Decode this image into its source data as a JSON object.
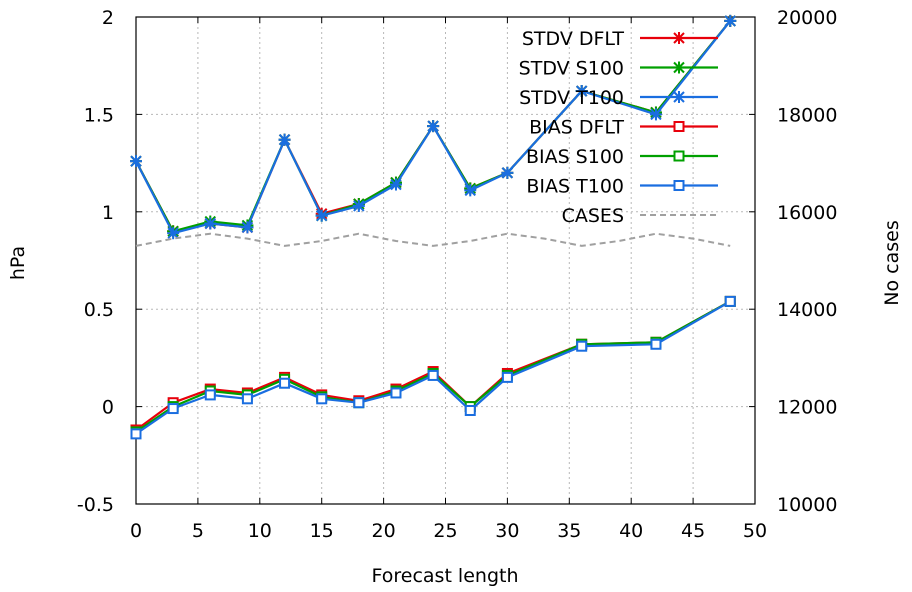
{
  "chart_data": {
    "type": "line",
    "title": "",
    "xlabel": "Forecast length",
    "ylabel": "hPa",
    "y2label": "No cases",
    "xlim": [
      0,
      50
    ],
    "ylim": [
      -0.5,
      2
    ],
    "y2lim": [
      10000,
      20000
    ],
    "xticks": [
      "0",
      "5",
      "10",
      "15",
      "20",
      "25",
      "30",
      "35",
      "40",
      "45",
      "50"
    ],
    "yticks": [
      "-0.5",
      "0",
      "0.5",
      "1",
      "1.5",
      "2"
    ],
    "y2ticks": [
      "10000",
      "12000",
      "14000",
      "16000",
      "18000",
      "20000"
    ],
    "grid": true,
    "legend_position": "top-right",
    "series": [
      {
        "name": "STDV DFLT",
        "color": "#e8000b",
        "marker": "star",
        "dash": "solid",
        "axis": "left",
        "x": [
          0,
          3,
          6,
          9,
          12,
          15,
          18,
          21,
          24,
          27,
          30,
          36,
          42,
          48
        ],
        "y": [
          1.26,
          0.9,
          0.94,
          0.92,
          1.37,
          0.99,
          1.04,
          1.15,
          1.44,
          1.12,
          1.2,
          1.62,
          1.51,
          1.98
        ]
      },
      {
        "name": "STDV S100",
        "color": "#00a000",
        "marker": "star",
        "dash": "solid",
        "axis": "left",
        "x": [
          0,
          3,
          6,
          9,
          12,
          15,
          18,
          21,
          24,
          27,
          30,
          36,
          42,
          48
        ],
        "y": [
          1.26,
          0.9,
          0.95,
          0.93,
          1.37,
          0.98,
          1.04,
          1.15,
          1.44,
          1.12,
          1.2,
          1.62,
          1.51,
          1.98
        ]
      },
      {
        "name": "STDV T100",
        "color": "#1a6ee0",
        "marker": "star",
        "dash": "solid",
        "axis": "left",
        "x": [
          0,
          3,
          6,
          9,
          12,
          15,
          18,
          21,
          24,
          27,
          30,
          36,
          42,
          48
        ],
        "y": [
          1.26,
          0.89,
          0.94,
          0.92,
          1.37,
          0.98,
          1.03,
          1.14,
          1.44,
          1.11,
          1.2,
          1.62,
          1.5,
          1.98
        ]
      },
      {
        "name": "BIAS DFLT",
        "color": "#e8000b",
        "marker": "square",
        "dash": "solid",
        "axis": "left",
        "x": [
          0,
          3,
          6,
          9,
          12,
          15,
          18,
          21,
          24,
          27,
          30,
          36,
          42,
          48
        ],
        "y": [
          -0.12,
          0.02,
          0.09,
          0.07,
          0.15,
          0.06,
          0.03,
          0.09,
          0.18,
          0.0,
          0.17,
          0.32,
          0.33,
          0.54
        ]
      },
      {
        "name": "BIAS S100",
        "color": "#00a000",
        "marker": "square",
        "dash": "solid",
        "axis": "left",
        "x": [
          0,
          3,
          6,
          9,
          12,
          15,
          18,
          21,
          24,
          27,
          30,
          36,
          42,
          48
        ],
        "y": [
          -0.13,
          0.0,
          0.08,
          0.06,
          0.14,
          0.05,
          0.02,
          0.08,
          0.17,
          0.0,
          0.16,
          0.32,
          0.33,
          0.54
        ]
      },
      {
        "name": "BIAS T100",
        "color": "#1a6ee0",
        "marker": "square",
        "dash": "solid",
        "axis": "left",
        "x": [
          0,
          3,
          6,
          9,
          12,
          15,
          18,
          21,
          24,
          27,
          30,
          36,
          42,
          48
        ],
        "y": [
          -0.14,
          -0.01,
          0.06,
          0.04,
          0.12,
          0.04,
          0.02,
          0.07,
          0.16,
          -0.02,
          0.15,
          0.31,
          0.32,
          0.54
        ]
      },
      {
        "name": "CASES",
        "color": "#a0a0a0",
        "marker": "none",
        "dash": "dashed",
        "axis": "right",
        "x": [
          0,
          3,
          6,
          9,
          12,
          15,
          18,
          21,
          24,
          27,
          30,
          33,
          36,
          39,
          42,
          45,
          48
        ],
        "y": [
          15300,
          15450,
          15550,
          15450,
          15300,
          15400,
          15550,
          15400,
          15300,
          15400,
          15550,
          15450,
          15300,
          15400,
          15550,
          15450,
          15300
        ]
      }
    ]
  }
}
